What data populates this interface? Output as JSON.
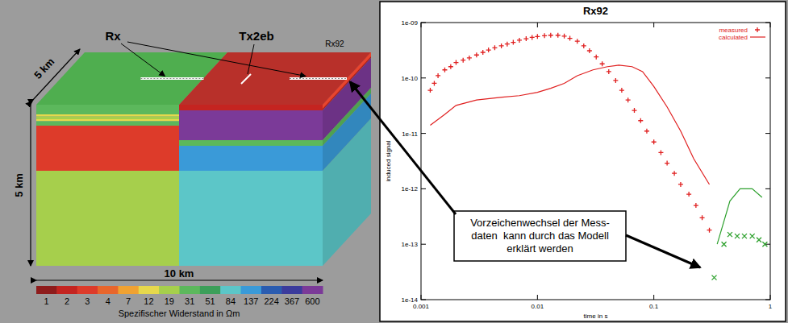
{
  "diagram": {
    "labels": {
      "rx": "Rx",
      "tx": "Tx2eb",
      "rx92": "Rx92"
    },
    "dimensions": {
      "width_y": "5 km",
      "depth": "5 km",
      "length": "10 km"
    },
    "colorbar": {
      "title": "Spezifischer Widerstand in Ωm",
      "ticks": [
        1,
        2,
        3,
        4,
        7,
        12,
        19,
        31,
        51,
        84,
        137,
        224,
        367,
        600
      ],
      "colors": [
        "#8e1c1c",
        "#c42420",
        "#dd3b2a",
        "#e8662c",
        "#f0a232",
        "#e6d84c",
        "#a6cf4c",
        "#5cb85c",
        "#3c9f5a",
        "#5cc6c8",
        "#3a9ad8",
        "#2a5cb0",
        "#3b3b9c",
        "#7b3a98"
      ]
    }
  },
  "chart_data": {
    "type": "line",
    "title": "Rx92",
    "x_label": "time in s",
    "y_label": "induced signal",
    "log": true,
    "grid": false,
    "legend": "top-right",
    "xlim": [
      0.001,
      1
    ],
    "ylim": [
      1e-14,
      1e-09
    ],
    "xticks": [
      0.001,
      0.01,
      0.1,
      1
    ],
    "yticks": [
      {
        "value": 1e-14,
        "label": "1e-14"
      },
      {
        "value": 1e-13,
        "label": "1e-13"
      },
      {
        "value": 1e-12,
        "label": "1e-12"
      },
      {
        "value": 1e-11,
        "label": "1e-11"
      },
      {
        "value": 1e-10,
        "label": "1e-10"
      },
      {
        "value": 1e-09,
        "label": "1e-09"
      }
    ],
    "series": [
      {
        "name": "measured",
        "color": "#e02020",
        "type": "scatter",
        "marker": "plus",
        "x": [
          0.0012,
          0.0013,
          0.0014,
          0.0016,
          0.0018,
          0.002,
          0.0023,
          0.0026,
          0.003,
          0.0034,
          0.0038,
          0.0043,
          0.0049,
          0.0055,
          0.0062,
          0.007,
          0.008,
          0.009,
          0.01,
          0.0115,
          0.013,
          0.015,
          0.017,
          0.019,
          0.022,
          0.025,
          0.028,
          0.032,
          0.036,
          0.041,
          0.047,
          0.053,
          0.06,
          0.068,
          0.077,
          0.087,
          0.1,
          0.115,
          0.13,
          0.15,
          0.17,
          0.2,
          0.23,
          0.26,
          0.3
        ],
        "values": [
          6e-11,
          8e-11,
          1.1e-10,
          1.4e-10,
          1.6e-10,
          1.9e-10,
          2.1e-10,
          2.3e-10,
          2.6e-10,
          2.9e-10,
          3.2e-10,
          3.5e-10,
          3.8e-10,
          4.1e-10,
          4.4e-10,
          4.8e-10,
          5.1e-10,
          5.4e-10,
          5.6e-10,
          5.8e-10,
          5.9e-10,
          5.9e-10,
          5.7e-10,
          5.2e-10,
          4.6e-10,
          3.8e-10,
          3.1e-10,
          2.4e-10,
          1.8e-10,
          1.3e-10,
          9e-11,
          6e-11,
          4e-11,
          2.6e-11,
          1.7e-11,
          1.1e-11,
          7e-12,
          4.5e-12,
          2.9e-12,
          1.9e-12,
          1.2e-12,
          8e-13,
          5e-13,
          3e-13,
          1.8e-13
        ]
      },
      {
        "color": "#2ca02c",
        "type": "scatter",
        "marker": "x",
        "x": [
          0.33,
          0.4,
          0.45,
          0.52,
          0.6,
          0.7,
          0.8,
          0.9
        ],
        "values": [
          2.5e-14,
          1e-13,
          1.5e-13,
          1.4e-13,
          1.4e-13,
          1.4e-13,
          1.2e-13,
          1e-13
        ]
      },
      {
        "name": "calculated",
        "color": "#e02020",
        "type": "line",
        "line_style": "solid",
        "x": [
          0.0012,
          0.0016,
          0.002,
          0.003,
          0.005,
          0.007,
          0.01,
          0.013,
          0.017,
          0.022,
          0.03,
          0.04,
          0.05,
          0.065,
          0.08,
          0.1,
          0.13,
          0.17,
          0.22,
          0.3
        ],
        "values": [
          1.4e-11,
          2.2e-11,
          3.2e-11,
          4e-11,
          4.5e-11,
          4.8e-11,
          5.5e-11,
          6.5e-11,
          8e-11,
          1.1e-10,
          1.4e-10,
          1.6e-10,
          1.7e-10,
          1.6e-10,
          1.3e-10,
          7e-11,
          3e-11,
          1.1e-11,
          3.5e-12,
          1.2e-12
        ]
      },
      {
        "color": "#2ca02c",
        "type": "line",
        "line_style": "solid",
        "x": [
          0.35,
          0.45,
          0.55,
          0.7,
          0.85
        ],
        "values": [
          1e-13,
          6e-13,
          1e-12,
          1e-12,
          7e-13
        ]
      }
    ]
  },
  "callout": {
    "lines": [
      "Vorzeichenwechsel der Mess-",
      "daten  kann durch das Modell",
      "erklärt werden"
    ]
  }
}
